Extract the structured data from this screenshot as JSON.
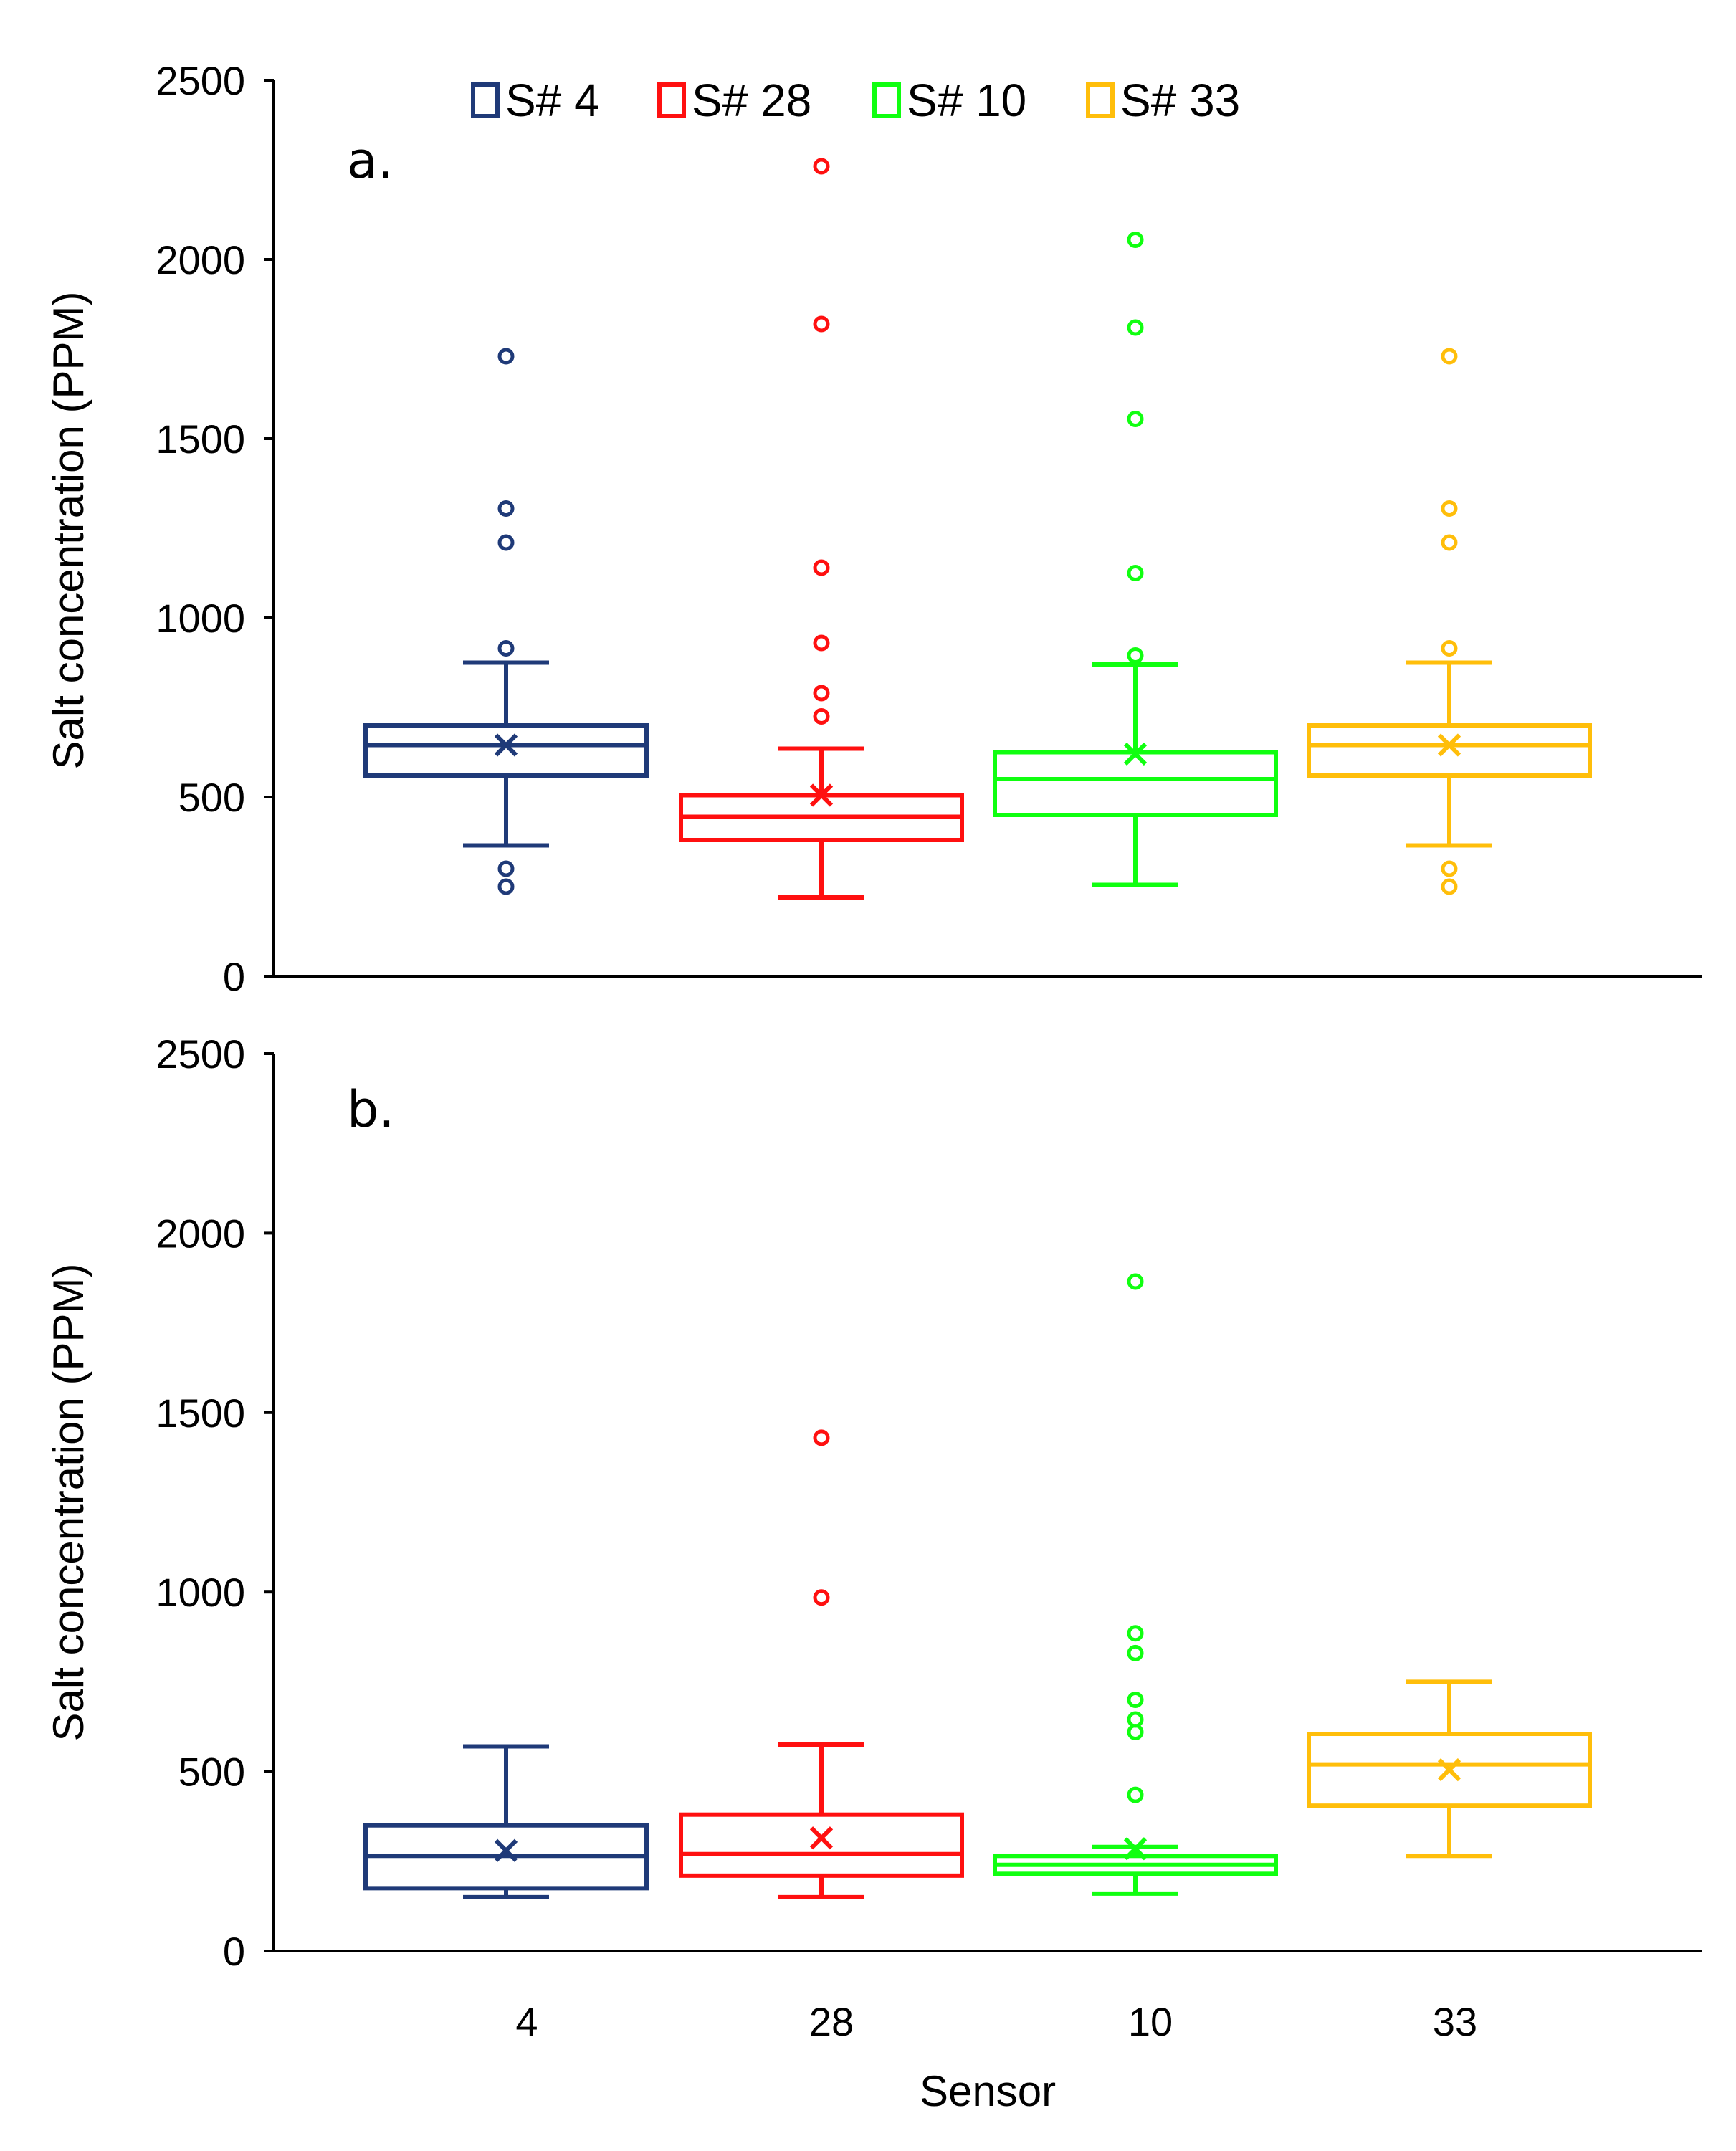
{
  "chart_data": {
    "type": "boxplot",
    "xlabel": "Sensor",
    "categories": [
      "4",
      "28",
      "10",
      "33"
    ],
    "legend": [
      {
        "label": "S# 4",
        "color": "#1f3a78"
      },
      {
        "label": "S# 28",
        "color": "#ff1010"
      },
      {
        "label": "S# 10",
        "color": "#10ff10"
      },
      {
        "label": "S# 33",
        "color": "#ffbe0a"
      }
    ],
    "panels": [
      {
        "label": "a.",
        "ylabel": "Salt concentration (PPM)",
        "ylim": [
          0,
          2500
        ],
        "yticks": [
          "0",
          "500",
          "1000",
          "1500",
          "2000",
          "2500"
        ],
        "boxes": [
          {
            "sensor": "4",
            "whisker_low": 365,
            "q1": 560,
            "median": 645,
            "q3": 700,
            "whisker_high": 875,
            "mean": 645,
            "outliers": [
              250,
              300,
              915,
              1210,
              1305,
              1730
            ]
          },
          {
            "sensor": "28",
            "whisker_low": 220,
            "q1": 380,
            "median": 445,
            "q3": 505,
            "whisker_high": 635,
            "mean": 505,
            "outliers": [
              725,
              790,
              930,
              1140,
              1820,
              2260
            ]
          },
          {
            "sensor": "10",
            "whisker_low": 255,
            "q1": 450,
            "median": 550,
            "q3": 625,
            "whisker_high": 870,
            "mean": 620,
            "outliers": [
              895,
              1125,
              1555,
              1810,
              2055
            ]
          },
          {
            "sensor": "33",
            "whisker_low": 365,
            "q1": 560,
            "median": 645,
            "q3": 700,
            "whisker_high": 875,
            "mean": 645,
            "outliers": [
              250,
              300,
              915,
              1210,
              1305,
              1730
            ]
          }
        ]
      },
      {
        "label": "b.",
        "ylabel": "Salt concentration (PPM)",
        "ylim": [
          0,
          2500
        ],
        "yticks": [
          "0",
          "500",
          "1000",
          "1500",
          "2000",
          "2500"
        ],
        "boxes": [
          {
            "sensor": "4",
            "whisker_low": 150,
            "q1": 175,
            "median": 265,
            "q3": 350,
            "whisker_high": 570,
            "mean": 280,
            "outliers": []
          },
          {
            "sensor": "28",
            "whisker_low": 150,
            "q1": 210,
            "median": 270,
            "q3": 380,
            "whisker_high": 575,
            "mean": 315,
            "outliers": [
              985,
              1430
            ]
          },
          {
            "sensor": "10",
            "whisker_low": 160,
            "q1": 215,
            "median": 240,
            "q3": 265,
            "whisker_high": 290,
            "mean": 285,
            "outliers": [
              435,
              610,
              645,
              700,
              830,
              885,
              1865
            ]
          },
          {
            "sensor": "33",
            "whisker_low": 265,
            "q1": 405,
            "median": 520,
            "q3": 605,
            "whisker_high": 750,
            "mean": 505,
            "outliers": []
          }
        ]
      }
    ]
  }
}
